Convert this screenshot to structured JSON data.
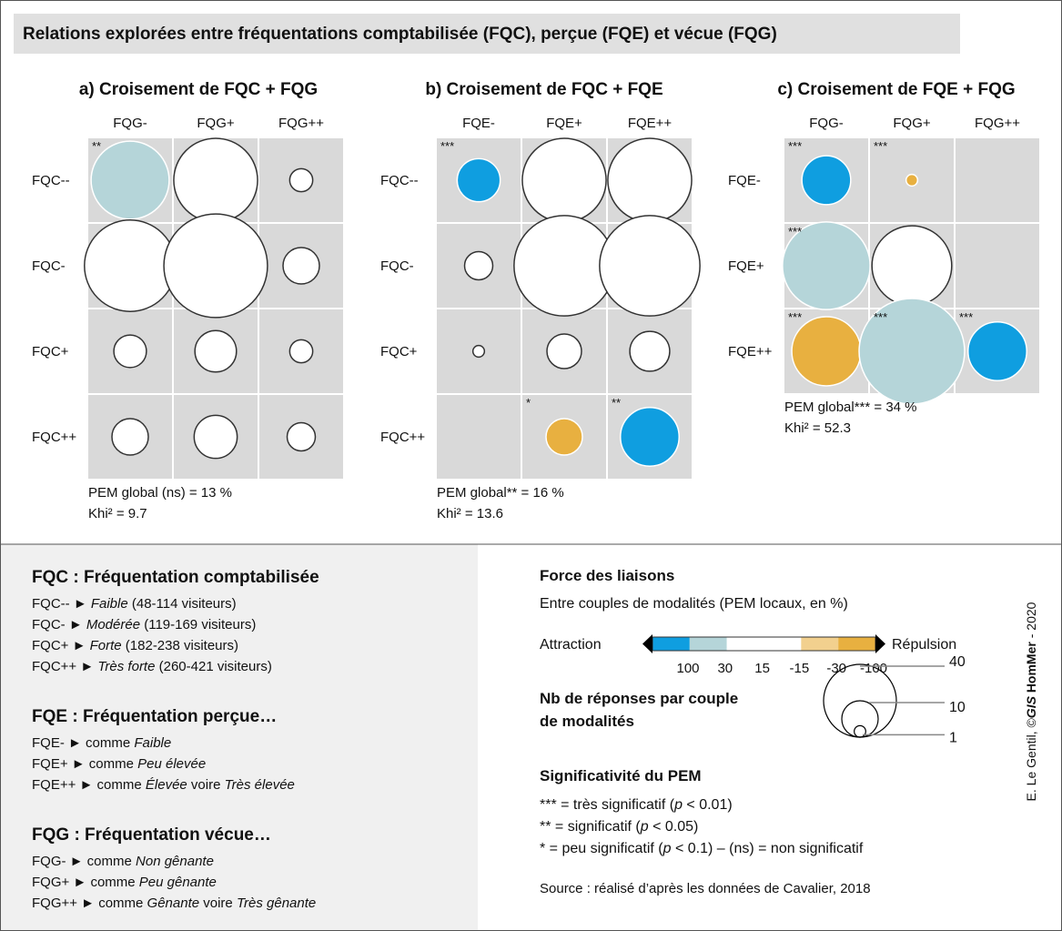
{
  "title": "Relations explorées entre fréquentations comptabilisée (FQC), perçue (FQE) et vécue (FQG)",
  "panels": [
    {
      "type": "bubble-matrix",
      "title": "a) Croisement de FQC + FQG",
      "columns": [
        "FQG-",
        "FQG+",
        "FQG++"
      ],
      "rows": [
        "FQC--",
        "FQC-",
        "FQC+",
        "FQC++"
      ],
      "values": [
        [
          46,
          53,
          4
        ],
        [
          63,
          81,
          10
        ],
        [
          8,
          13,
          4
        ],
        [
          10,
          14,
          6
        ]
      ],
      "colors": [
        [
          "#b5d5d9",
          "#ffffff",
          "#ffffff"
        ],
        [
          "#ffffff",
          "#ffffff",
          "#ffffff"
        ],
        [
          "#ffffff",
          "#ffffff",
          "#ffffff"
        ],
        [
          "#ffffff",
          "#ffffff",
          "#ffffff"
        ]
      ],
      "stars": [
        [
          "**",
          null,
          null
        ],
        [
          null,
          null,
          null
        ],
        [
          null,
          null,
          null
        ],
        [
          null,
          null,
          null
        ]
      ],
      "pem": "PEM global (ns) = 13 %",
      "khi": "Khi² = 9.7"
    },
    {
      "type": "bubble-matrix",
      "title": "b) Croisement de FQC + FQE",
      "columns": [
        "FQE-",
        "FQE+",
        "FQE++"
      ],
      "rows": [
        "FQC--",
        "FQC-",
        "FQC+",
        "FQC++"
      ],
      "values": [
        [
          14,
          53,
          53
        ],
        [
          6,
          76,
          76
        ],
        [
          1,
          9,
          12
        ],
        [
          null,
          10,
          26
        ]
      ],
      "colors": [
        [
          "#0f9ee0",
          "#ffffff",
          "#ffffff"
        ],
        [
          "#ffffff",
          "#ffffff",
          "#ffffff"
        ],
        [
          "#ffffff",
          "#ffffff",
          "#ffffff"
        ],
        [
          null,
          "#e8b040",
          "#0f9ee0"
        ]
      ],
      "stars": [
        [
          "***",
          null,
          null
        ],
        [
          null,
          null,
          null
        ],
        [
          null,
          null,
          null
        ],
        [
          null,
          "*",
          "**"
        ]
      ],
      "pem": "PEM global** = 16 %",
      "khi": "Khi² = 13.6"
    },
    {
      "type": "bubble-matrix",
      "title": "c) Croisement de FQE + FQG",
      "columns": [
        "FQG-",
        "FQG+",
        "FQG++"
      ],
      "rows": [
        "FQE-",
        "FQE+",
        "FQE++"
      ],
      "values": [
        [
          18,
          1,
          null
        ],
        [
          58,
          48,
          null
        ],
        [
          36,
          84,
          26
        ]
      ],
      "colors": [
        [
          "#0f9ee0",
          "#e8b040",
          null
        ],
        [
          "#b5d5d9",
          "#ffffff",
          null
        ],
        [
          "#e8b040",
          "#b5d5d9",
          "#0f9ee0"
        ]
      ],
      "stars": [
        [
          "***",
          "***",
          null
        ],
        [
          "***",
          null,
          null
        ],
        [
          "***",
          "***",
          "***"
        ]
      ],
      "pem": "PEM global*** = 34 %",
      "khi": "Khi² = 52.3"
    }
  ],
  "definitions": [
    {
      "heading": "FQC : Fréquentation comptabilisée",
      "lines": [
        [
          {
            "t": "FQC-- ► "
          },
          {
            "t": "Faible",
            "i": true
          },
          {
            "t": " (48-114 visiteurs)"
          }
        ],
        [
          {
            "t": "FQC- ► "
          },
          {
            "t": "Modérée",
            "i": true
          },
          {
            "t": " (119-169 visiteurs)"
          }
        ],
        [
          {
            "t": "FQC+ ► "
          },
          {
            "t": "Forte",
            "i": true
          },
          {
            "t": " (182-238 visiteurs)"
          }
        ],
        [
          {
            "t": "FQC++ ► "
          },
          {
            "t": "Très forte",
            "i": true
          },
          {
            "t": " (260-421 visiteurs)"
          }
        ]
      ]
    },
    {
      "heading": "FQE : Fréquentation perçue…",
      "lines": [
        [
          {
            "t": "FQE- ► comme "
          },
          {
            "t": "Faible",
            "i": true
          }
        ],
        [
          {
            "t": "FQE+ ► comme "
          },
          {
            "t": "Peu élevée",
            "i": true
          }
        ],
        [
          {
            "t": "FQE++ ► comme "
          },
          {
            "t": "Élevée",
            "i": true
          },
          {
            "t": " voire "
          },
          {
            "t": "Très élevée",
            "i": true
          }
        ]
      ]
    },
    {
      "heading": "FQG : Fréquentation vécue…",
      "lines": [
        [
          {
            "t": "FQG- ► comme "
          },
          {
            "t": "Non gênante",
            "i": true
          }
        ],
        [
          {
            "t": "FQG+ ► comme "
          },
          {
            "t": "Peu gênante",
            "i": true
          }
        ],
        [
          {
            "t": "FQG++ ► comme "
          },
          {
            "t": "Gênante",
            "i": true
          },
          {
            "t": " voire "
          },
          {
            "t": "Très gênante",
            "i": true
          }
        ]
      ]
    }
  ],
  "legend": {
    "force_title": "Force des liaisons",
    "force_subtitle": "Entre couples de modalités (PEM locaux, en %)",
    "attraction": "Attraction",
    "repulsion": "Répulsion",
    "scale_colors": [
      "#0f9ee0",
      "#b5d5d9",
      "#ffffff",
      "#ffffff",
      "#f2d08e",
      "#e8b040"
    ],
    "scale_ticks": [
      100,
      30,
      15,
      -15,
      -30,
      -100
    ],
    "size_title": [
      "Nb de réponses par couple",
      "de modalités"
    ],
    "sizes": [
      40,
      10,
      1
    ],
    "signif_title": "Significativité du PEM",
    "signif_lines": [
      [
        {
          "t": "*** = très significatif ("
        },
        {
          "t": "p",
          "i": true
        },
        {
          "t": " < 0.01)"
        }
      ],
      [
        {
          "t": "** = significatif ("
        },
        {
          "t": "p",
          "i": true
        },
        {
          "t": " < 0.05)"
        }
      ],
      [
        {
          "t": "* = peu significatif ("
        },
        {
          "t": "p",
          "i": true
        },
        {
          "t": " < 0.1) – (ns) = non significatif"
        }
      ]
    ],
    "source": "Source : réalisé d’après les données de Cavalier, 2018"
  },
  "credit": [
    {
      "t": "E. Le Gentil, ©"
    },
    {
      "t": "GIS",
      "i": true,
      "b": true
    },
    {
      "t": " HomMer",
      "b": true
    },
    {
      "t": " - 2020"
    }
  ]
}
